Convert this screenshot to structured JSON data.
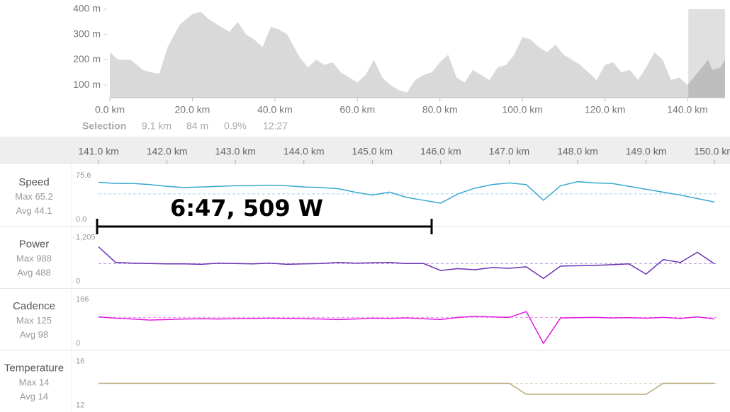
{
  "chart_data": [
    {
      "type": "area",
      "color": "#d9d9d9",
      "selection_color": "rgba(0,0,0,0.12)",
      "selection_range": [
        140.2,
        149.1
      ],
      "xlim": [
        0,
        149.1
      ],
      "ylim": [
        50,
        400
      ],
      "xticks": [
        {
          "value": 0,
          "label": "0.0 km"
        },
        {
          "value": 20,
          "label": "20.0 km"
        },
        {
          "value": 40,
          "label": "40.0 km"
        },
        {
          "value": 60,
          "label": "60.0 km"
        },
        {
          "value": 80,
          "label": "80.0 km"
        },
        {
          "value": 100,
          "label": "100.0 km"
        },
        {
          "value": 120,
          "label": "120.0 km"
        },
        {
          "value": 140,
          "label": "140.0 km"
        }
      ],
      "yticks": [
        {
          "value": 100,
          "label": "100 m"
        },
        {
          "value": 200,
          "label": "200 m"
        },
        {
          "value": 300,
          "label": "300 m"
        },
        {
          "value": 400,
          "label": "400 m"
        }
      ],
      "x": [
        0,
        2,
        5,
        8,
        10,
        12,
        14,
        17,
        20,
        22,
        24,
        27,
        29,
        31,
        33,
        35,
        37,
        39,
        41,
        43,
        46,
        48,
        50,
        52,
        54,
        56,
        58,
        60,
        62,
        64,
        66,
        68,
        70,
        72,
        74,
        76,
        78,
        80,
        82,
        84,
        86,
        88,
        90,
        92,
        94,
        96,
        98,
        100,
        102,
        104,
        106,
        108,
        110,
        112,
        114,
        116,
        118,
        120,
        122,
        124,
        126,
        128,
        130,
        132,
        134,
        136,
        138,
        140,
        142,
        144,
        145,
        146,
        148,
        149.1
      ],
      "values": [
        230,
        200,
        200,
        160,
        150,
        145,
        250,
        340,
        380,
        390,
        360,
        330,
        310,
        350,
        300,
        280,
        250,
        330,
        320,
        300,
        210,
        170,
        200,
        180,
        190,
        150,
        130,
        110,
        140,
        200,
        130,
        100,
        80,
        70,
        120,
        140,
        150,
        190,
        220,
        130,
        110,
        160,
        140,
        120,
        170,
        180,
        220,
        290,
        280,
        250,
        230,
        260,
        220,
        200,
        180,
        150,
        120,
        180,
        190,
        150,
        160,
        120,
        170,
        230,
        200,
        120,
        130,
        100,
        140,
        180,
        200,
        160,
        170,
        200
      ]
    },
    {
      "type": "line",
      "title": "Speed",
      "color": "#38a9d1",
      "stats": [
        {
          "label": "Max",
          "value": 65.2
        },
        {
          "label": "Avg",
          "value": 44.1
        }
      ],
      "xlim": [
        141,
        150.04
      ],
      "ylim": [
        0,
        75.6
      ],
      "yticks": [
        {
          "value": 0,
          "label": "0.0"
        },
        75.6
      ],
      "xticks": [
        {
          "value": 141,
          "label": "141.0 km"
        },
        {
          "value": 142,
          "label": "142.0 km"
        },
        {
          "value": 143,
          "label": "143.0 km"
        },
        {
          "value": 144,
          "label": "144.0 km"
        },
        {
          "value": 145,
          "label": "145.0 km"
        },
        {
          "value": 146,
          "label": "146.0 km"
        },
        {
          "value": 147,
          "label": "147.0 km"
        },
        {
          "value": 148,
          "label": "148.0 km"
        },
        {
          "value": 149,
          "label": "149.0 km"
        },
        {
          "value": 150,
          "label": "150.0 km"
        }
      ],
      "x": [
        141,
        141.25,
        141.5,
        141.75,
        142,
        142.25,
        142.5,
        142.75,
        143,
        143.25,
        143.5,
        143.75,
        144,
        144.25,
        144.5,
        144.75,
        145,
        145.25,
        145.5,
        145.75,
        146,
        146.25,
        146.5,
        146.75,
        147,
        147.25,
        147.5,
        147.75,
        148,
        148.25,
        148.5,
        148.75,
        149,
        149.25,
        149.5,
        149.75,
        150
      ],
      "values": [
        64,
        62,
        62,
        60,
        57,
        55,
        56,
        57,
        58,
        58,
        59,
        58,
        56,
        55,
        53,
        47,
        42,
        47,
        38,
        33,
        28,
        44,
        54,
        60,
        63,
        60,
        33,
        58,
        65,
        63,
        62,
        57,
        52,
        47,
        42,
        36,
        30
      ]
    },
    {
      "type": "line",
      "title": "Power",
      "color": "#6a2fb5",
      "stats": [
        {
          "label": "Max",
          "value": 988
        },
        {
          "label": "Avg",
          "value": 488
        }
      ],
      "xlim": [
        141,
        150.04
      ],
      "ylim": [
        0,
        1205
      ],
      "yticks": [
        0,
        {
          "value": 1205,
          "label": "1,205"
        }
      ],
      "x": [
        141,
        141.25,
        141.5,
        141.75,
        142,
        142.25,
        142.5,
        142.75,
        143,
        143.25,
        143.5,
        143.75,
        144,
        144.25,
        144.5,
        144.75,
        145,
        145.25,
        145.5,
        145.75,
        146,
        146.25,
        146.5,
        146.75,
        147,
        147.25,
        147.5,
        147.75,
        148,
        148.25,
        148.5,
        148.75,
        149,
        149.25,
        149.5,
        149.75,
        150
      ],
      "values": [
        950,
        520,
        500,
        490,
        480,
        480,
        470,
        500,
        490,
        480,
        500,
        470,
        480,
        490,
        520,
        500,
        510,
        520,
        490,
        490,
        300,
        350,
        320,
        380,
        360,
        400,
        80,
        420,
        430,
        440,
        460,
        480,
        200,
        600,
        520,
        800,
        480
      ]
    },
    {
      "type": "line",
      "title": "Cadence",
      "color": "#e21ce0",
      "stats": [
        {
          "label": "Max",
          "value": 125
        },
        {
          "label": "Avg",
          "value": 98
        }
      ],
      "xlim": [
        141,
        150.04
      ],
      "ylim": [
        0,
        166
      ],
      "yticks": [
        0,
        166
      ],
      "x": [
        141,
        141.25,
        141.5,
        141.75,
        142,
        142.25,
        142.5,
        142.75,
        143,
        143.25,
        143.5,
        143.75,
        144,
        144.25,
        144.5,
        144.75,
        145,
        145.25,
        145.5,
        145.75,
        146,
        146.25,
        146.5,
        146.75,
        147,
        147.25,
        147.5,
        147.75,
        148,
        148.25,
        148.5,
        148.75,
        149,
        149.25,
        149.5,
        149.75,
        150
      ],
      "values": [
        100,
        95,
        92,
        88,
        90,
        92,
        93,
        92,
        93,
        94,
        95,
        94,
        93,
        92,
        90,
        92,
        95,
        94,
        96,
        93,
        90,
        98,
        102,
        100,
        98,
        120,
        0,
        96,
        97,
        98,
        96,
        97,
        95,
        98,
        94,
        100,
        92
      ]
    },
    {
      "type": "line",
      "title": "Temperature",
      "color": "#b7ab7a",
      "stats": [
        {
          "label": "Max",
          "value": 14
        },
        {
          "label": "Avg",
          "value": 14
        }
      ],
      "xlim": [
        141,
        150.04
      ],
      "ylim": [
        12,
        16
      ],
      "yticks": [
        12,
        16
      ],
      "x": [
        141,
        141.25,
        141.5,
        141.75,
        142,
        142.25,
        142.5,
        142.75,
        143,
        143.25,
        143.5,
        143.75,
        144,
        144.25,
        144.5,
        144.75,
        145,
        145.25,
        145.5,
        145.75,
        146,
        146.25,
        146.5,
        146.75,
        147,
        147.25,
        147.5,
        147.75,
        148,
        148.25,
        148.5,
        148.75,
        149,
        149.25,
        149.5,
        149.75,
        150
      ],
      "values": [
        14,
        14,
        14,
        14,
        14,
        14,
        14,
        14,
        14,
        14,
        14,
        14,
        14,
        14,
        14,
        14,
        14,
        14,
        14,
        14,
        14,
        14,
        14,
        14,
        14,
        13,
        13,
        13,
        13,
        13,
        13,
        13,
        13,
        14,
        14,
        14,
        14
      ]
    }
  ],
  "selection": {
    "label": "Selection",
    "distance": "9.1 km",
    "elevation": "84 m",
    "grade": "0.9%",
    "duration": "12:27"
  },
  "annotation": "6:47, 509 W"
}
